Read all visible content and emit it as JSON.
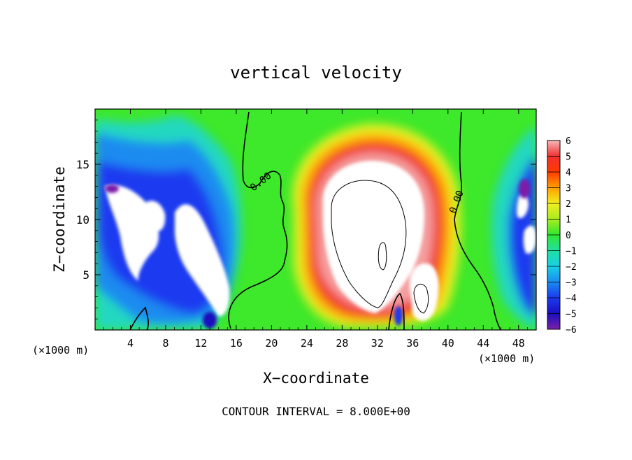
{
  "chart_data": {
    "type": "heatmap",
    "title": "vertical velocity",
    "xlabel": "X−coordinate",
    "ylabel": "Z−coordinate",
    "x_unit_label_left": "(×1000 m)",
    "x_unit_label_right": "(×1000 m)",
    "footer": "CONTOUR INTERVAL = 8.000E+00",
    "xlim": [
      0,
      50
    ],
    "ylim": [
      0,
      20
    ],
    "x_ticks": [
      4,
      8,
      12,
      16,
      20,
      24,
      28,
      32,
      36,
      40,
      44,
      48
    ],
    "y_ticks": [
      5,
      10,
      15
    ],
    "colorbar": {
      "range": [
        -6,
        6
      ],
      "tick_labels": [
        "6",
        "5",
        "4",
        "3",
        "2",
        "1",
        "0",
        "−1",
        "−2",
        "−3",
        "−4",
        "−5",
        "−6"
      ],
      "tick_values": [
        6,
        5,
        4,
        3,
        2,
        1,
        0,
        -1,
        -2,
        -3,
        -4,
        -5,
        -6
      ]
    },
    "contour_labels": [
      {
        "text": "0.00",
        "x": 19.0,
        "z": 13.2
      },
      {
        "text": "0.00",
        "x": 41.3,
        "z": 11.5
      }
    ],
    "colors": {
      "neg6": "#7b1fa8",
      "neg5": "#1a0fbf",
      "neg4": "#1c3af0",
      "neg3": "#1a8bf0",
      "neg2": "#18cfe6",
      "neg1": "#20e0a0",
      "zero": "#2ee830",
      "pos1": "#a8ec20",
      "pos2": "#e8f020",
      "pos3": "#ffb000",
      "pos4": "#ff4000",
      "pos5": "#f02020",
      "pos6": "#f5a0a0",
      "saturated": "#ffffff"
    }
  }
}
